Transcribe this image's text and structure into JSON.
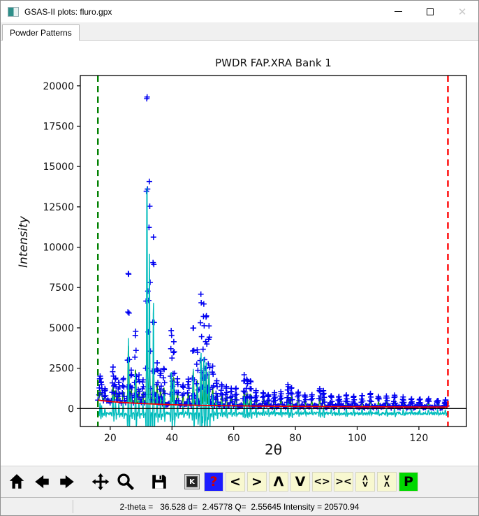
{
  "window": {
    "title": "GSAS-II plots: fluro.gpx",
    "controls": {
      "minimize": "minimize",
      "maximize": "maximize",
      "close": "✕"
    }
  },
  "tabs": [
    {
      "label": "Powder Patterns",
      "selected": true
    }
  ],
  "chart_data": {
    "type": "line",
    "title": "PWDR FAP.XRA Bank 1",
    "xlabel": "2θ",
    "ylabel": "Intensity",
    "xlim": [
      10.3,
      135.4
    ],
    "ylim": [
      -1113,
      20640
    ],
    "xticks": [
      20,
      40,
      60,
      80,
      100,
      120
    ],
    "yticks": [
      0,
      2500,
      5000,
      7500,
      10000,
      12500,
      15000,
      17500,
      20000
    ],
    "grid": false,
    "legend": "none",
    "limits": {
      "lower_2theta": 16.0,
      "upper_2theta": 129.4
    },
    "colors": {
      "obs": "#0000f0",
      "calc": "#109010",
      "background_line": "#f00000",
      "diff": "#00bcbc",
      "zero_line": "#000000",
      "lower_limit": "#008000",
      "upper_limit": "#ff0000"
    },
    "series": [
      {
        "name": "observed",
        "style": "plus-markers",
        "color": "#0000f0"
      },
      {
        "name": "calculated",
        "style": "line",
        "color": "#109010"
      },
      {
        "name": "background",
        "style": "line",
        "color": "#f00000"
      },
      {
        "name": "difference",
        "style": "line",
        "color": "#00bcbc",
        "baseline": -300
      }
    ],
    "background_points": [
      [
        16,
        520
      ],
      [
        20,
        430
      ],
      [
        24,
        375
      ],
      [
        28,
        330
      ],
      [
        32,
        295
      ],
      [
        36,
        265
      ],
      [
        40,
        240
      ],
      [
        45,
        215
      ],
      [
        50,
        195
      ],
      [
        55,
        180
      ],
      [
        60,
        168
      ],
      [
        66,
        155
      ],
      [
        72,
        145
      ],
      [
        78,
        137
      ],
      [
        84,
        129
      ],
      [
        90,
        122
      ],
      [
        96,
        116
      ],
      [
        102,
        111
      ],
      [
        108,
        106
      ],
      [
        114,
        102
      ],
      [
        120,
        98
      ],
      [
        125,
        95
      ],
      [
        129.4,
        93
      ]
    ],
    "peaks": [
      [
        16.7,
        1450,
        650
      ],
      [
        17.2,
        950,
        450
      ],
      [
        18.3,
        700,
        350
      ],
      [
        20.9,
        2100,
        950
      ],
      [
        21.7,
        1500,
        700
      ],
      [
        22.8,
        1300,
        600
      ],
      [
        24.2,
        1500,
        700
      ],
      [
        25.9,
        8350,
        3600
      ],
      [
        26.8,
        2050,
        950
      ],
      [
        28.2,
        4600,
        2100
      ],
      [
        29.3,
        1700,
        800
      ],
      [
        30.6,
        1500,
        700
      ],
      [
        31.9,
        19800,
        4000
      ],
      [
        32.7,
        13800,
        3500
      ],
      [
        34.0,
        10400,
        2900
      ],
      [
        35.2,
        2600,
        1200
      ],
      [
        36.3,
        2100,
        1000
      ],
      [
        37.4,
        2300,
        1050
      ],
      [
        39.8,
        4700,
        2000
      ],
      [
        40.6,
        3900,
        1700
      ],
      [
        41.8,
        1600,
        750
      ],
      [
        43.6,
        1300,
        600
      ],
      [
        45.3,
        1650,
        780
      ],
      [
        46.9,
        5000,
        2200
      ],
      [
        48.2,
        3500,
        1550
      ],
      [
        49.4,
        6950,
        2900
      ],
      [
        50.3,
        6300,
        2700
      ],
      [
        51.1,
        5800,
        2500
      ],
      [
        52.0,
        4900,
        2100
      ],
      [
        53.2,
        2400,
        1100
      ],
      [
        54.5,
        1500,
        700
      ],
      [
        56.1,
        1300,
        620
      ],
      [
        57.6,
        1200,
        570
      ],
      [
        59.2,
        1050,
        500
      ],
      [
        60.7,
        1100,
        520
      ],
      [
        63.4,
        1900,
        900
      ],
      [
        64.3,
        1700,
        820
      ],
      [
        65.5,
        1600,
        760
      ],
      [
        67.2,
        950,
        460
      ],
      [
        69.6,
        820,
        400
      ],
      [
        71.2,
        720,
        350
      ],
      [
        73.2,
        800,
        390
      ],
      [
        75.3,
        900,
        440
      ],
      [
        77.6,
        1300,
        620
      ],
      [
        78.7,
        1250,
        600
      ],
      [
        80.9,
        950,
        460
      ],
      [
        83.1,
        720,
        350
      ],
      [
        85.3,
        700,
        340
      ],
      [
        87.9,
        1100,
        530
      ],
      [
        89.1,
        1000,
        480
      ],
      [
        91.6,
        620,
        300
      ],
      [
        94.1,
        660,
        320
      ],
      [
        96.5,
        700,
        340
      ],
      [
        98.9,
        620,
        300
      ],
      [
        101.6,
        660,
        320
      ],
      [
        104.3,
        800,
        390
      ],
      [
        106.9,
        620,
        300
      ],
      [
        109.5,
        660,
        320
      ],
      [
        112.1,
        700,
        340
      ],
      [
        114.9,
        560,
        270
      ],
      [
        117.6,
        520,
        250
      ],
      [
        120.3,
        510,
        250
      ],
      [
        123.1,
        490,
        240
      ],
      [
        126.1,
        470,
        230
      ],
      [
        128.6,
        460,
        220
      ]
    ]
  },
  "toolbar": {
    "mpl_icons": [
      "home-icon",
      "back-arrow-icon",
      "forward-arrow-icon",
      "pan-icon",
      "zoom-icon",
      "save-icon"
    ],
    "buttons": [
      {
        "id": "key-press",
        "label": "K",
        "bg": "#d8d8d8",
        "fg": "#ffffff",
        "style": "key"
      },
      {
        "id": "help",
        "label": "?",
        "bg": "#1c1cff",
        "fg": "#d00000"
      },
      {
        "id": "prev-item",
        "label": "<",
        "bg": "#f8f8d0",
        "fg": "#000000"
      },
      {
        "id": "next-item",
        "label": ">",
        "bg": "#f8f8d0",
        "fg": "#000000"
      },
      {
        "id": "shift-up",
        "label": "Λ",
        "bg": "#f8f8d0",
        "fg": "#000000"
      },
      {
        "id": "shift-down",
        "label": "V",
        "bg": "#f8f8d0",
        "fg": "#000000"
      },
      {
        "id": "widen",
        "label": "<>",
        "bg": "#f8f8d0",
        "fg": "#000000"
      },
      {
        "id": "narrow",
        "label": "><",
        "bg": "#f8f8d0",
        "fg": "#000000"
      },
      {
        "id": "expand-vert",
        "two_line": [
          "Λ",
          "V"
        ],
        "bg": "#f8f8d0",
        "fg": "#000000"
      },
      {
        "id": "contract-vert",
        "two_line": [
          "V",
          "Λ"
        ],
        "bg": "#f8f8d0",
        "fg": "#000000"
      },
      {
        "id": "publish",
        "label": "P",
        "bg": "#00d800",
        "fg": "#000000"
      }
    ]
  },
  "statusbar": {
    "text": "2-theta =   36.528 d=  2.45778 Q=  2.55645 Intensity = 20570.94"
  }
}
